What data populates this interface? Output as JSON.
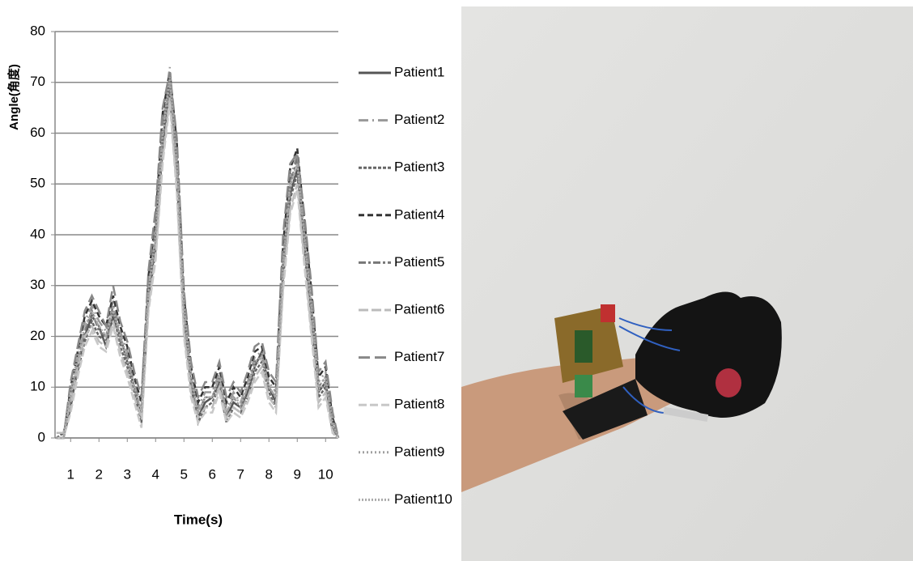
{
  "chart_data": {
    "type": "line",
    "y_label": "Angle(角度)",
    "x_label": "Time(s)",
    "x": [
      0.5,
      0.75,
      1,
      1.25,
      1.5,
      1.75,
      2,
      2.25,
      2.5,
      2.75,
      3,
      3.25,
      3.5,
      3.75,
      4,
      4.25,
      4.5,
      4.75,
      5,
      5.25,
      5.5,
      5.75,
      6,
      6.25,
      6.5,
      6.75,
      7,
      7.25,
      7.5,
      7.75,
      8,
      8.25,
      8.5,
      8.75,
      9,
      9.25,
      9.5,
      9.75,
      10,
      10.25,
      10.45
    ],
    "xlim": [
      0.45,
      10.45
    ],
    "xticks": [
      1,
      2,
      3,
      4,
      5,
      6,
      7,
      8,
      9,
      10
    ],
    "ylim": [
      0,
      80
    ],
    "yticks": [
      0,
      10,
      20,
      30,
      40,
      50,
      60,
      70,
      80
    ],
    "grid": true,
    "series": [
      {
        "name": "Patient1",
        "color": "#555555",
        "dash": "none",
        "values": [
          0,
          0,
          6,
          14,
          20,
          24,
          22,
          18,
          24,
          20,
          15,
          10,
          4,
          28,
          38,
          58,
          70,
          52,
          24,
          10,
          4,
          7,
          8,
          11,
          4,
          7,
          6,
          9,
          14,
          17,
          10,
          7,
          33,
          48,
          53,
          38,
          24,
          9,
          11,
          2,
          0
        ]
      },
      {
        "name": "Patient2",
        "color": "#999999",
        "dash": "12 5 2 5",
        "values": [
          0,
          0,
          9,
          16,
          23,
          26,
          23,
          21,
          27,
          21,
          17,
          11,
          6,
          31,
          42,
          62,
          73,
          56,
          27,
          13,
          6,
          9,
          9,
          13,
          6,
          9,
          7,
          11,
          16,
          17,
          11,
          9,
          36,
          51,
          56,
          41,
          27,
          11,
          13,
          3,
          0
        ]
      },
      {
        "name": "Patient3",
        "color": "#666666",
        "dash": "4 2",
        "values": [
          0,
          1,
          7,
          13,
          19,
          23,
          20,
          19,
          25,
          18,
          14,
          9,
          3,
          27,
          37,
          57,
          68,
          50,
          22,
          11,
          3,
          6,
          7,
          10,
          3,
          6,
          5,
          8,
          13,
          15,
          9,
          6,
          31,
          47,
          52,
          37,
          22,
          8,
          10,
          1,
          0
        ]
      },
      {
        "name": "Patient4",
        "color": "#333333",
        "dash": "7 4",
        "values": [
          0,
          0,
          10,
          17,
          24,
          27,
          24,
          22,
          28,
          22,
          18,
          12,
          7,
          32,
          43,
          64,
          72,
          58,
          28,
          14,
          7,
          10,
          10,
          14,
          7,
          10,
          8,
          12,
          17,
          18,
          12,
          10,
          38,
          53,
          57,
          43,
          29,
          12,
          14,
          4,
          0
        ]
      },
      {
        "name": "Patient5",
        "color": "#777777",
        "dash": "9 3 3 3",
        "values": [
          0,
          0,
          8,
          15,
          21,
          25,
          21,
          20,
          26,
          19,
          16,
          10,
          5,
          30,
          41,
          61,
          71,
          54,
          25,
          12,
          5,
          8,
          8,
          12,
          5,
          8,
          6,
          10,
          15,
          16,
          10,
          8,
          34,
          50,
          55,
          40,
          26,
          10,
          12,
          2,
          0
        ]
      },
      {
        "name": "Patient6",
        "color": "#bbbbbb",
        "dash": "12 4",
        "values": [
          1,
          1,
          7,
          14,
          20,
          22,
          19,
          18,
          23,
          17,
          13,
          8,
          4,
          26,
          36,
          55,
          67,
          49,
          21,
          9,
          4,
          6,
          6,
          10,
          4,
          6,
          5,
          8,
          12,
          14,
          8,
          6,
          30,
          45,
          50,
          35,
          21,
          7,
          9,
          1,
          0
        ]
      },
      {
        "name": "Patient7",
        "color": "#888888",
        "dash": "14 6",
        "values": [
          0,
          0,
          11,
          18,
          25,
          28,
          25,
          22,
          30,
          23,
          19,
          13,
          8,
          33,
          45,
          65,
          72,
          59,
          29,
          15,
          8,
          11,
          11,
          15,
          8,
          11,
          9,
          13,
          18,
          19,
          13,
          11,
          40,
          54,
          56,
          44,
          30,
          13,
          15,
          5,
          0
        ]
      },
      {
        "name": "Patient8",
        "color": "#c8c8c8",
        "dash": "10 4",
        "values": [
          0,
          0,
          5,
          12,
          18,
          21,
          18,
          17,
          22,
          16,
          12,
          7,
          2,
          25,
          35,
          54,
          66,
          48,
          20,
          8,
          3,
          5,
          5,
          9,
          3,
          5,
          4,
          7,
          11,
          13,
          7,
          5,
          29,
          44,
          49,
          34,
          20,
          6,
          8,
          1,
          0
        ]
      },
      {
        "name": "Patient9",
        "color": "#a0a0a0",
        "dash": "2 3",
        "values": [
          0,
          0,
          8,
          15,
          22,
          24,
          22,
          20,
          26,
          20,
          16,
          10,
          5,
          29,
          39,
          59,
          70,
          53,
          24,
          11,
          5,
          8,
          8,
          12,
          5,
          8,
          6,
          10,
          14,
          16,
          10,
          8,
          33,
          49,
          54,
          39,
          25,
          9,
          11,
          2,
          0
        ]
      },
      {
        "name": "Patient10",
        "color": "#aaaaaa",
        "dash": "2 2",
        "values": [
          0,
          0,
          9,
          16,
          22,
          25,
          22,
          20,
          25,
          20,
          15,
          10,
          5,
          29,
          40,
          60,
          71,
          54,
          26,
          12,
          5,
          8,
          8,
          12,
          5,
          8,
          7,
          10,
          15,
          16,
          10,
          8,
          34,
          50,
          54,
          40,
          26,
          10,
          12,
          3,
          0
        ]
      }
    ]
  }
}
